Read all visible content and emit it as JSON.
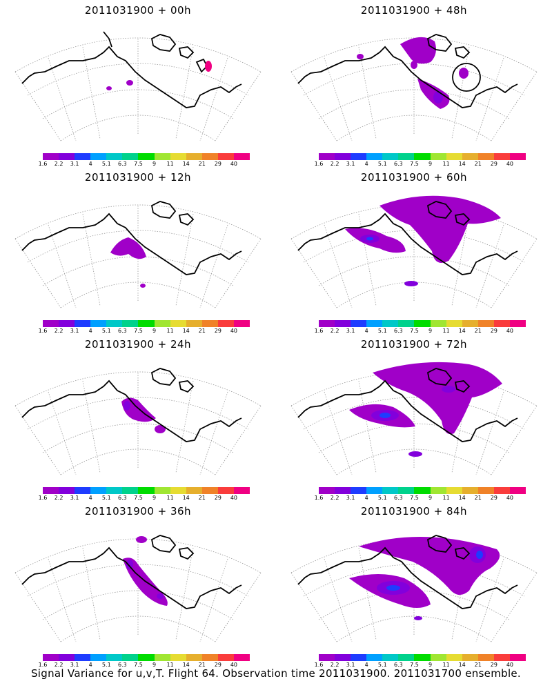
{
  "colorbar": {
    "colors": [
      "#a000c8",
      "#8200dc",
      "#1e3cff",
      "#00a0ff",
      "#00c8c8",
      "#00d28c",
      "#00dc00",
      "#a0e632",
      "#e6dc32",
      "#e6af2d",
      "#f08228",
      "#fa3c3c",
      "#f00082"
    ],
    "labels": [
      "1.6",
      "2.2",
      "3.1",
      "4",
      "5.1",
      "6.3",
      "7.5",
      "9",
      "11",
      "14",
      "21",
      "29",
      "40"
    ]
  },
  "panels": [
    {
      "id": "p00",
      "title": "2011031900 + 00h"
    },
    {
      "id": "p48",
      "title": "2011031900 + 48h"
    },
    {
      "id": "p12",
      "title": "2011031900 + 12h"
    },
    {
      "id": "p60",
      "title": "2011031900 + 60h"
    },
    {
      "id": "p24",
      "title": "2011031900 + 24h"
    },
    {
      "id": "p72",
      "title": "2011031900 + 72h"
    },
    {
      "id": "p36",
      "title": "2011031900 + 36h"
    },
    {
      "id": "p84",
      "title": "2011031900 + 84h"
    }
  ],
  "footer": "Signal Variance for u,v,T. Flight 64. Observation time 2011031900. 2011031700 ensemble."
}
